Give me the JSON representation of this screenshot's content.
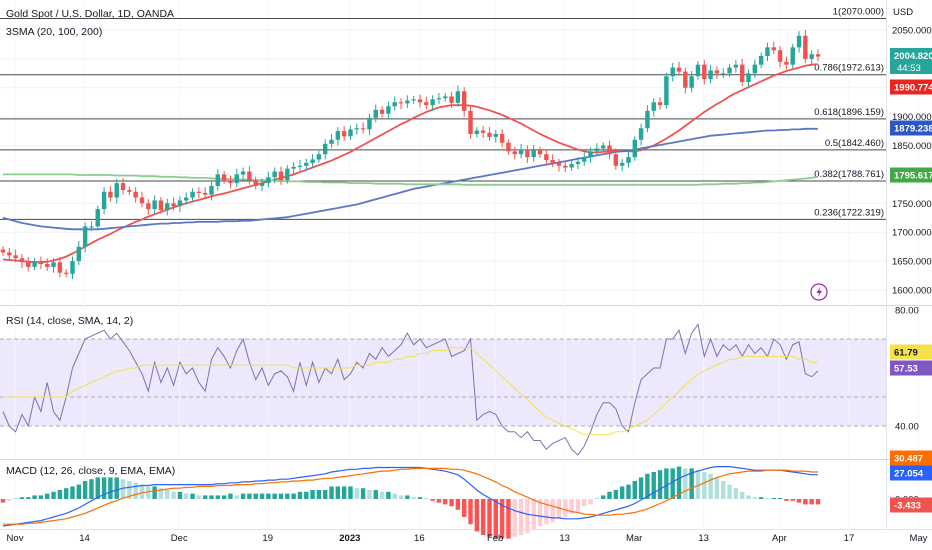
{
  "header": {
    "title": "Gold Spot / U.S. Dollar, 1D, OANDA",
    "indicator": "3SMA (20, 100, 200)",
    "currency": "USD"
  },
  "colors": {
    "up": "#26a69a",
    "down": "#ef5350",
    "sma20": "#ef5350",
    "sma100": "#5b78c8",
    "sma200": "#8fcc90",
    "rsi": "#7e70b5",
    "rsi_ma": "#f2e34a",
    "rsi_band": "#ede8fb",
    "macd": "#2962ff",
    "signal": "#ff6d00"
  },
  "icons": {
    "replay": "lightning-icon"
  },
  "fib_levels": [
    {
      "label": "1(2070.000)",
      "value": 2070.0
    },
    {
      "label": "0.786(1972.613)",
      "value": 1972.613
    },
    {
      "label": "0.618(1896.159)",
      "value": 1896.159
    },
    {
      "label": "0.5(1842.460)",
      "value": 1842.46
    },
    {
      "label": "0.382(1788.761)",
      "value": 1788.761
    },
    {
      "label": "0.236(1722.319)",
      "value": 1722.319
    }
  ],
  "badges": {
    "price": {
      "value": "2004.820",
      "sub": "44:53",
      "color": "#26a69a"
    },
    "sma20": {
      "value": "1990.774",
      "color": "#e8261f"
    },
    "sma100": {
      "value": "1879.238",
      "color": "#2d57c4"
    },
    "sma200": {
      "value": "1795.617",
      "color": "#42a845"
    },
    "rsi": {
      "value": "61.79",
      "color": "#f5e24a"
    },
    "rsi2": {
      "value": "57.53",
      "color": "#7e57c2"
    },
    "macd": {
      "value": "27.054",
      "color": "#2962ff"
    },
    "signal": {
      "value": "30.487",
      "color": "#ff6d00"
    },
    "hist": {
      "value": "-3.433",
      "color": "#ef5350"
    }
  },
  "rsi_panel": {
    "title": "RSI (14, close, SMA, 14, 2)",
    "ticks": [
      "80.00",
      "40.00"
    ]
  },
  "macd_panel": {
    "title": "MACD (12, 26, close, 9, EMA, EMA)",
    "ticks": [
      "0.000"
    ]
  },
  "chart_data": {
    "type": "candlestick",
    "title": "Gold Spot / U.S. Dollar, 1D, OANDA",
    "ylim": [
      1595,
      2090
    ],
    "yticks": [
      1600,
      1650,
      1700,
      1750,
      1800,
      1850,
      1900,
      1950,
      2000,
      2050
    ],
    "ytick_labels": [
      "1600.000",
      "1650.000",
      "1700.000",
      "1750.000",
      "",
      "1850.000",
      "1900.000",
      "",
      "",
      "2050.000"
    ],
    "x_labels": [
      "Nov",
      "14",
      "Dec",
      "19",
      "2023",
      "16",
      "Feb",
      "13",
      "Mar",
      "13",
      "Apr",
      "17",
      "May"
    ],
    "closes": [
      1665,
      1660,
      1655,
      1648,
      1640,
      1650,
      1645,
      1640,
      1648,
      1630,
      1628,
      1650,
      1675,
      1710,
      1710,
      1740,
      1770,
      1760,
      1785,
      1773,
      1770,
      1760,
      1750,
      1740,
      1755,
      1738,
      1750,
      1745,
      1755,
      1760,
      1770,
      1768,
      1765,
      1780,
      1800,
      1790,
      1785,
      1800,
      1805,
      1790,
      1780,
      1785,
      1795,
      1805,
      1790,
      1810,
      1813,
      1815,
      1820,
      1826,
      1835,
      1853,
      1860,
      1875,
      1866,
      1878,
      1880,
      1878,
      1898,
      1912,
      1905,
      1918,
      1925,
      1923,
      1928,
      1930,
      1925,
      1920,
      1930,
      1932,
      1935,
      1924,
      1944,
      1910,
      1870,
      1876,
      1872,
      1865,
      1870,
      1855,
      1840,
      1835,
      1843,
      1830,
      1842,
      1835,
      1825,
      1820,
      1815,
      1812,
      1818,
      1822,
      1830,
      1840,
      1845,
      1850,
      1835,
      1815,
      1820,
      1830,
      1860,
      1880,
      1910,
      1925,
      1920,
      1970,
      1985,
      1978,
      1950,
      1970,
      1990,
      1965,
      1980,
      1975,
      1975,
      1985,
      1990,
      1960,
      1975,
      1990,
      2005,
      2020,
      2015,
      1995,
      1990,
      2020,
      2040,
      2000,
      2008,
      2004
    ],
    "series": [
      {
        "name": "SMA 20",
        "values": [
          1653,
          1652,
          1651,
          1650,
          1649,
          1648,
          1648,
          1649,
          1651,
          1654,
          1658,
          1663,
          1669,
          1675,
          1681,
          1687,
          1692,
          1697,
          1703,
          1708,
          1713,
          1718,
          1722,
          1727,
          1731,
          1735,
          1739,
          1743,
          1747,
          1750,
          1753,
          1756,
          1759,
          1762,
          1765,
          1767,
          1770,
          1773,
          1776,
          1779,
          1782,
          1785,
          1788,
          1791,
          1794,
          1797,
          1800,
          1804,
          1808,
          1812,
          1816,
          1820,
          1824,
          1829,
          1834,
          1839,
          1845,
          1851,
          1857,
          1863,
          1869,
          1875,
          1881,
          1887,
          1892,
          1898,
          1903,
          1908,
          1912,
          1916,
          1918,
          1920,
          1920,
          1920,
          1919,
          1917,
          1914,
          1911,
          1907,
          1903,
          1898,
          1893,
          1888,
          1882,
          1876,
          1870,
          1865,
          1860,
          1855,
          1851,
          1847,
          1843,
          1840,
          1838,
          1838,
          1839,
          1840,
          1841,
          1841,
          1840,
          1840,
          1842,
          1846,
          1850,
          1856,
          1862,
          1869,
          1876,
          1884,
          1892,
          1900,
          1908,
          1915,
          1922,
          1928,
          1935,
          1941,
          1946,
          1951,
          1956,
          1961,
          1966,
          1971,
          1975,
          1979,
          1982,
          1985,
          1988,
          1990,
          1991
        ]
      },
      {
        "name": "SMA 100",
        "values": [
          1725,
          1722,
          1719,
          1716,
          1714,
          1712,
          1710,
          1709,
          1708,
          1707,
          1706,
          1705,
          1705,
          1705,
          1705,
          1705,
          1706,
          1707,
          1708,
          1709,
          1710,
          1711,
          1712,
          1713,
          1714,
          1715,
          1715,
          1716,
          1716,
          1717,
          1717,
          1718,
          1718,
          1718,
          1718,
          1719,
          1719,
          1719,
          1720,
          1720,
          1721,
          1722,
          1723,
          1724,
          1725,
          1726,
          1728,
          1730,
          1732,
          1734,
          1736,
          1738,
          1740,
          1742,
          1744,
          1746,
          1748,
          1751,
          1754,
          1757,
          1760,
          1763,
          1766,
          1769,
          1772,
          1775,
          1777,
          1779,
          1781,
          1783,
          1785,
          1787,
          1789,
          1791,
          1793,
          1795,
          1797,
          1799,
          1801,
          1803,
          1805,
          1807,
          1809,
          1811,
          1813,
          1815,
          1817,
          1819,
          1821,
          1823,
          1825,
          1827,
          1829,
          1831,
          1833,
          1835,
          1837,
          1839,
          1840,
          1841,
          1843,
          1845,
          1847,
          1849,
          1851,
          1853,
          1855,
          1857,
          1859,
          1861,
          1863,
          1865,
          1867,
          1868,
          1869,
          1870,
          1871,
          1872,
          1873,
          1874,
          1875,
          1876,
          1876,
          1877,
          1877,
          1878,
          1878,
          1879,
          1879,
          1879
        ]
      },
      {
        "name": "SMA 200",
        "values": [
          1800,
          1800,
          1800,
          1800,
          1800,
          1800,
          1800,
          1800,
          1800,
          1800,
          1800,
          1800,
          1799,
          1799,
          1799,
          1799,
          1799,
          1799,
          1798,
          1798,
          1798,
          1798,
          1797,
          1797,
          1797,
          1796,
          1796,
          1796,
          1795,
          1795,
          1794,
          1794,
          1794,
          1793,
          1793,
          1792,
          1792,
          1792,
          1791,
          1791,
          1790,
          1790,
          1790,
          1789,
          1789,
          1788,
          1788,
          1788,
          1787,
          1787,
          1787,
          1786,
          1786,
          1786,
          1786,
          1785,
          1785,
          1785,
          1785,
          1784,
          1784,
          1784,
          1784,
          1784,
          1783,
          1783,
          1783,
          1783,
          1783,
          1783,
          1783,
          1783,
          1783,
          1782,
          1782,
          1782,
          1782,
          1782,
          1782,
          1782,
          1782,
          1782,
          1782,
          1782,
          1782,
          1782,
          1782,
          1782,
          1782,
          1782,
          1782,
          1782,
          1782,
          1782,
          1782,
          1782,
          1782,
          1782,
          1782,
          1782,
          1782,
          1782,
          1782,
          1782,
          1782,
          1782,
          1782,
          1782,
          1782,
          1782,
          1782,
          1783,
          1783,
          1783,
          1784,
          1784,
          1784,
          1785,
          1785,
          1786,
          1786,
          1787,
          1788,
          1789,
          1790,
          1791,
          1792,
          1793,
          1794,
          1796
        ]
      }
    ],
    "rsi": {
      "ylim": [
        30,
        80
      ],
      "band": [
        40,
        70
      ],
      "values": [
        45,
        40,
        38,
        44,
        40,
        50,
        45,
        55,
        45,
        42,
        50,
        60,
        65,
        70,
        71,
        72,
        73,
        70,
        72,
        69,
        66,
        62,
        58,
        52,
        62,
        55,
        60,
        54,
        62,
        58,
        60,
        55,
        52,
        63,
        67,
        64,
        60,
        66,
        70,
        62,
        56,
        60,
        54,
        58,
        59,
        57,
        52,
        62,
        54,
        62,
        55,
        60,
        58,
        63,
        56,
        58,
        62,
        60,
        65,
        63,
        67,
        64,
        66,
        68,
        72,
        68,
        70,
        67,
        68,
        69,
        70,
        64,
        65,
        66,
        70,
        42,
        44,
        45,
        44,
        40,
        38,
        38,
        36,
        38,
        35,
        35,
        32,
        34,
        35,
        36,
        32,
        30,
        33,
        38,
        44,
        48,
        48,
        46,
        40,
        38,
        48,
        56,
        58,
        60,
        60,
        70,
        70,
        73,
        65,
        72,
        75,
        64,
        70,
        64,
        68,
        66,
        68,
        64,
        68,
        65,
        67,
        64,
        70,
        68,
        63,
        68,
        69,
        58,
        57,
        59
      ],
      "ma": [
        50,
        50,
        50,
        50,
        50,
        50,
        50,
        50,
        50,
        50,
        50,
        52,
        53,
        54,
        55,
        56,
        57,
        58,
        59,
        59,
        60,
        60,
        61,
        61,
        61,
        61,
        61,
        61,
        61,
        61,
        61,
        61,
        61,
        61,
        61,
        61,
        61,
        61,
        61,
        61,
        61,
        61,
        61,
        61,
        61,
        61,
        60,
        60,
        60,
        60,
        60,
        60,
        60,
        60,
        60,
        60,
        61,
        61,
        61,
        62,
        62,
        62,
        63,
        63,
        64,
        64,
        65,
        65,
        66,
        66,
        66,
        67,
        67,
        67,
        67,
        65,
        63,
        61,
        59,
        57,
        55,
        53,
        51,
        49,
        47,
        45,
        43,
        42,
        41,
        40,
        39,
        38,
        37,
        37,
        37,
        37,
        37,
        38,
        38,
        39,
        40,
        41,
        42,
        44,
        46,
        48,
        50,
        52,
        54,
        56,
        58,
        59,
        60,
        61,
        62,
        63,
        63,
        64,
        64,
        64,
        64,
        64,
        64,
        64,
        64,
        64,
        63,
        63,
        62,
        62
      ]
    },
    "macd": {
      "macd": [
        -30,
        -29,
        -28,
        -27,
        -26,
        -25,
        -24,
        -22,
        -20,
        -18,
        -16,
        -13,
        -10,
        -6,
        -2,
        2,
        5,
        8,
        10,
        12,
        13,
        14,
        15,
        15,
        16,
        16,
        16,
        16,
        16,
        16,
        16,
        16,
        16,
        16,
        17,
        17,
        18,
        18,
        19,
        19,
        20,
        20,
        21,
        21,
        22,
        22,
        23,
        24,
        25,
        26,
        27,
        28,
        30,
        31,
        32,
        33,
        33,
        34,
        34,
        35,
        35,
        35,
        35,
        35,
        35,
        35,
        35,
        34,
        33,
        32,
        31,
        29,
        27,
        22,
        16,
        10,
        5,
        1,
        -3,
        -7,
        -10,
        -13,
        -15,
        -17,
        -18,
        -19,
        -20,
        -21,
        -21,
        -22,
        -22,
        -22,
        -21,
        -20,
        -18,
        -16,
        -14,
        -12,
        -10,
        -8,
        -5,
        -1,
        3,
        7,
        11,
        15,
        19,
        23,
        26,
        29,
        31,
        33,
        35,
        36,
        36,
        36,
        35,
        34,
        33,
        32,
        32,
        32,
        32,
        32,
        31,
        30,
        29,
        28,
        27,
        27
      ],
      "signal": [
        -28,
        -28,
        -28,
        -28,
        -27,
        -27,
        -26,
        -25,
        -24,
        -23,
        -22,
        -20,
        -18,
        -16,
        -13,
        -10,
        -7,
        -4,
        -2,
        1,
        3,
        5,
        7,
        8,
        9,
        10,
        11,
        12,
        12,
        13,
        13,
        14,
        14,
        14,
        15,
        15,
        15,
        16,
        16,
        16,
        17,
        17,
        18,
        18,
        19,
        19,
        20,
        20,
        21,
        21,
        22,
        23,
        23,
        24,
        25,
        26,
        27,
        28,
        29,
        30,
        31,
        31,
        32,
        33,
        33,
        34,
        34,
        34,
        34,
        34,
        34,
        33,
        33,
        32,
        30,
        28,
        25,
        22,
        19,
        15,
        12,
        8,
        5,
        2,
        -1,
        -4,
        -6,
        -8,
        -10,
        -12,
        -14,
        -15,
        -17,
        -17,
        -18,
        -18,
        -18,
        -17,
        -17,
        -16,
        -15,
        -13,
        -11,
        -8,
        -5,
        -2,
        2,
        5,
        9,
        12,
        15,
        18,
        21,
        24,
        26,
        28,
        29,
        30,
        31,
        31,
        31,
        32,
        32,
        32,
        32,
        31,
        31,
        31,
        30,
        30
      ]
    }
  }
}
